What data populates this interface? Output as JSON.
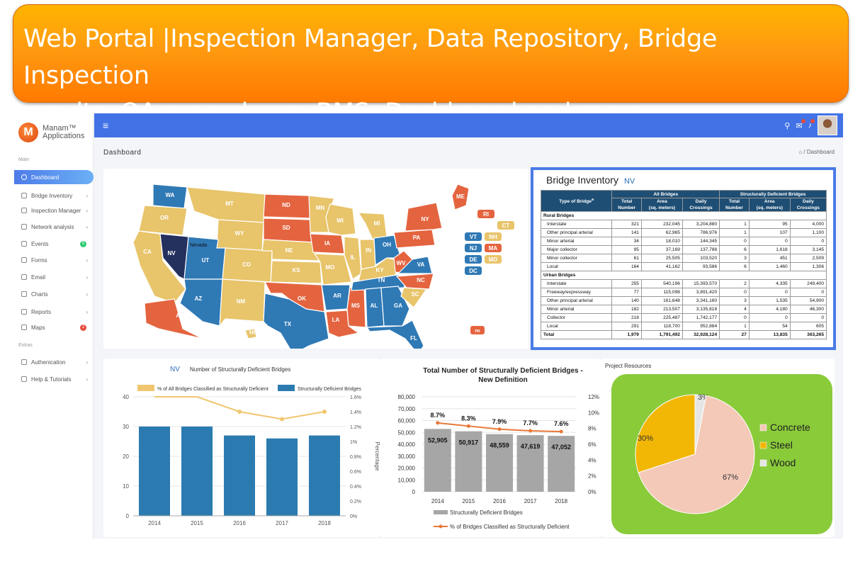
{
  "banner": {
    "line1": "Web Portal |Inspection Manager, Data Repository, Bridge Inspection",
    "line2": "results, QA procedures, BMS, Dashboard and more"
  },
  "logo": {
    "mark": "M",
    "line1": "Manam™",
    "line2": "Applications"
  },
  "sidebar": {
    "section_main": "Main",
    "section_extras": "Extras",
    "items": [
      {
        "label": "Dashboard"
      },
      {
        "label": "Bridge Inventory"
      },
      {
        "label": "Inspection Manager"
      },
      {
        "label": "Network analysis"
      },
      {
        "label": "Events",
        "badge": "5"
      },
      {
        "label": "Forms"
      },
      {
        "label": "Email"
      },
      {
        "label": "Charts"
      },
      {
        "label": "Reports"
      },
      {
        "label": "Maps",
        "badge": "2"
      },
      {
        "label": "Authenication"
      },
      {
        "label": "Help & Tutorials"
      }
    ],
    "colors": {
      "events_badge": "#2ecc71",
      "maps_badge": "#e74c3c"
    }
  },
  "topbar": {
    "menu_icon": "≡",
    "search_icon": "⚲",
    "chat_icon": "✉",
    "bell_icon": "♪"
  },
  "page": {
    "title": "Dashboard",
    "breadcrumb_home": "⌂",
    "breadcrumb_sep": "/",
    "breadcrumb_current": "Dashboard"
  },
  "map": {
    "colors": {
      "yellow": "#e8c46a",
      "red": "#e4643f",
      "blue": "#2f79b5",
      "navy": "#24305e"
    },
    "states": [
      {
        "abbr": "WA",
        "color": "blue"
      },
      {
        "abbr": "OR",
        "color": "yellow"
      },
      {
        "abbr": "CA",
        "color": "yellow"
      },
      {
        "abbr": "NV",
        "color": "navy"
      },
      {
        "abbr": "MT",
        "color": "yellow"
      },
      {
        "abbr": "WY",
        "color": "yellow"
      },
      {
        "abbr": "UT",
        "color": "blue"
      },
      {
        "abbr": "AZ",
        "color": "blue"
      },
      {
        "abbr": "CO",
        "color": "yellow"
      },
      {
        "abbr": "NM",
        "color": "yellow"
      },
      {
        "abbr": "ND",
        "color": "red"
      },
      {
        "abbr": "SD",
        "color": "red"
      },
      {
        "abbr": "NE",
        "color": "yellow"
      },
      {
        "abbr": "KS",
        "color": "yellow"
      },
      {
        "abbr": "OK",
        "color": "red"
      },
      {
        "abbr": "TX",
        "color": "blue"
      },
      {
        "abbr": "MN",
        "color": "yellow"
      },
      {
        "abbr": "IA",
        "color": "red"
      },
      {
        "abbr": "MO",
        "color": "yellow"
      },
      {
        "abbr": "AR",
        "color": "blue"
      },
      {
        "abbr": "LA",
        "color": "red"
      },
      {
        "abbr": "WI",
        "color": "yellow"
      },
      {
        "abbr": "IL",
        "color": "yellow"
      },
      {
        "abbr": "MS",
        "color": "red"
      },
      {
        "abbr": "MI",
        "color": "yellow"
      },
      {
        "abbr": "IN",
        "color": "yellow"
      },
      {
        "abbr": "KY",
        "color": "yellow"
      },
      {
        "abbr": "TN",
        "color": "blue"
      },
      {
        "abbr": "AL",
        "color": "blue"
      },
      {
        "abbr": "GA",
        "color": "blue"
      },
      {
        "abbr": "FL",
        "color": "blue"
      },
      {
        "abbr": "OH",
        "color": "blue"
      },
      {
        "abbr": "WV",
        "color": "red"
      },
      {
        "abbr": "VA",
        "color": "blue"
      },
      {
        "abbr": "NC",
        "color": "red"
      },
      {
        "abbr": "SC",
        "color": "yellow"
      },
      {
        "abbr": "PA",
        "color": "red"
      },
      {
        "abbr": "NY",
        "color": "red"
      },
      {
        "abbr": "ME",
        "color": "red"
      },
      {
        "abbr": "AK",
        "color": "red"
      },
      {
        "abbr": "HI",
        "color": "yellow"
      }
    ],
    "small_states": [
      {
        "abbr": "RI",
        "color": "red"
      },
      {
        "abbr": "CT",
        "color": "yellow"
      },
      {
        "abbr": "VT",
        "color": "blue"
      },
      {
        "abbr": "NH",
        "color": "yellow"
      },
      {
        "abbr": "NJ",
        "color": "blue"
      },
      {
        "abbr": "MA",
        "color": "red"
      },
      {
        "abbr": "DE",
        "color": "blue"
      },
      {
        "abbr": "MD",
        "color": "yellow"
      },
      {
        "abbr": "DC",
        "color": "blue"
      },
      {
        "abbr": "PR",
        "color": "red"
      }
    ],
    "tooltip": "Nevada"
  },
  "inventory": {
    "title": "Bridge Inventory",
    "state": "NV",
    "group_all": "All Bridges",
    "group_sd": "Structurally Deficient Bridges",
    "col_type": "Type of Bridge",
    "col_type_sup": "a",
    "columns": [
      "Total Number",
      "Area (sq. meters)",
      "Daily Crossings",
      "Total Number",
      "Area (sq. meters)",
      "Daily Crossings"
    ],
    "rows": [
      {
        "section": "Rural Bridges"
      },
      {
        "label": "Interstate",
        "v": [
          "321",
          "232,045",
          "3,204,880",
          "1",
          "95",
          "4,000"
        ]
      },
      {
        "label": "Other principal arterial",
        "v": [
          "141",
          "62,965",
          "786,976",
          "1",
          "107",
          "1,100"
        ]
      },
      {
        "label": "Minor arterial",
        "v": [
          "34",
          "18,010",
          "144,345",
          "0",
          "0",
          "0"
        ]
      },
      {
        "label": "Major collector",
        "v": [
          "95",
          "37,169",
          "137,788",
          "6",
          "1,618",
          "3,145"
        ]
      },
      {
        "label": "Minor collector",
        "v": [
          "61",
          "25,505",
          "103,520",
          "3",
          "451",
          "2,509"
        ]
      },
      {
        "label": "Local",
        "v": [
          "164",
          "41,162",
          "93,586",
          "6",
          "1,460",
          "1,306"
        ]
      },
      {
        "section": "Urban Bridges"
      },
      {
        "label": "Interstate",
        "v": [
          "255",
          "540,196",
          "15,393,570",
          "2",
          "4,335",
          "249,400"
        ]
      },
      {
        "label": "Freeway/expressway",
        "v": [
          "77",
          "115,098",
          "3,891,420",
          "0",
          "0",
          "0"
        ]
      },
      {
        "label": "Other principal arterial",
        "v": [
          "140",
          "161,648",
          "3,341,160",
          "3",
          "1,535",
          "54,900"
        ]
      },
      {
        "label": "Minor arterial",
        "v": [
          "182",
          "213,507",
          "3,135,818",
          "4",
          "4,180",
          "46,300"
        ]
      },
      {
        "label": "Collector",
        "v": [
          "218",
          "225,487",
          "1,742,177",
          "0",
          "0",
          "0"
        ]
      },
      {
        "label": "Local",
        "v": [
          "291",
          "118,700",
          "952,884",
          "1",
          "54",
          "605"
        ]
      },
      {
        "label": "Total",
        "total": true,
        "v": [
          "1,979",
          "1,791,492",
          "32,928,124",
          "27",
          "13,835",
          "363,265"
        ]
      }
    ]
  },
  "chart_data": [
    {
      "type": "bar",
      "state_label": "NV",
      "title": "Number of Structurally Deficient Bridges",
      "categories": [
        "2014",
        "2015",
        "2016",
        "2017",
        "2018"
      ],
      "series": [
        {
          "name": "Structurally Deficient Bridges",
          "values": [
            30,
            30,
            27,
            26,
            27
          ],
          "color": "#2b7bb0"
        },
        {
          "name": "% of All Bridges Classified as Structurally Deficient",
          "values": [
            1.6,
            1.6,
            1.4,
            1.3,
            1.4
          ],
          "type": "line",
          "axis": "right",
          "color": "#f0c770"
        }
      ],
      "ylim": [
        0,
        40
      ],
      "y_ticks": [
        "0",
        "10",
        "20",
        "30",
        "40"
      ],
      "y2lim": [
        0,
        1.6
      ],
      "y2_ticks": [
        "0%",
        "0.2%",
        "0.4%",
        "0.6%",
        "0.8%",
        "1%",
        "1.2%",
        "1.4%",
        "1.6%"
      ],
      "ylabel_right": "Percentage",
      "legend": "top"
    },
    {
      "type": "bar",
      "title": "Total Number of Structurally Deficient Bridges - New Definition",
      "categories": [
        "2014",
        "2015",
        "2016",
        "2017",
        "2018"
      ],
      "series": [
        {
          "name": "Structurally Deficient Bridges",
          "values": [
            52905,
            50917,
            48559,
            47619,
            47052
          ],
          "labels": [
            "52,905",
            "50,917",
            "48,559",
            "47,619",
            "47,052"
          ],
          "color": "#a6a6a6"
        },
        {
          "name": "% of Bridges Classified as Structurally Deficient",
          "values": [
            8.7,
            8.3,
            7.9,
            7.7,
            7.6
          ],
          "labels": [
            "8.7%",
            "8.3%",
            "7.9%",
            "7.7%",
            "7.6%"
          ],
          "type": "line",
          "axis": "right",
          "color": "#e8783a"
        }
      ],
      "ylim": [
        0,
        80000
      ],
      "y_ticks": [
        "0",
        "10,000",
        "20,000",
        "30,000",
        "40,000",
        "50,000",
        "60,000",
        "70,000",
        "80,000"
      ],
      "y2lim": [
        0,
        12
      ],
      "y2_ticks": [
        "0%",
        "2%",
        "4%",
        "6%",
        "8%",
        "10%",
        "12%"
      ],
      "legend": "bottom"
    },
    {
      "type": "pie",
      "title": "Project Resources",
      "slices": [
        {
          "name": "Concrete",
          "value": 67,
          "label": "67%",
          "color": "#f4c9b8"
        },
        {
          "name": "Steel",
          "value": 30,
          "label": "30%",
          "color": "#f2b705"
        },
        {
          "name": "Wood",
          "value": 3,
          "label": "3%",
          "color": "#e6e6e6"
        }
      ],
      "legend": "right"
    }
  ]
}
